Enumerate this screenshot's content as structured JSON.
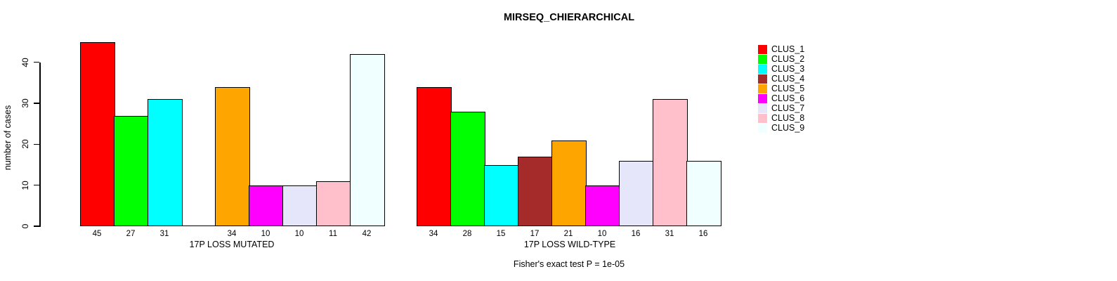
{
  "chart_data": {
    "type": "bar",
    "title": "MIRSEQ_CHIERARCHICAL",
    "ylabel": "number of cases",
    "xlabel": "",
    "ylim": [
      0,
      45
    ],
    "yticks": [
      0,
      10,
      20,
      30,
      40
    ],
    "grid": false,
    "legend_position": "right",
    "bar_border_color": "#000000",
    "clusters": [
      {
        "name": "CLUS_1",
        "color": "#FF0000"
      },
      {
        "name": "CLUS_2",
        "color": "#00FF00"
      },
      {
        "name": "CLUS_3",
        "color": "#00FFFF"
      },
      {
        "name": "CLUS_4",
        "color": "#A52A2A"
      },
      {
        "name": "CLUS_5",
        "color": "#FFA500"
      },
      {
        "name": "CLUS_6",
        "color": "#FF00FF"
      },
      {
        "name": "CLUS_7",
        "color": "#E6E6FA"
      },
      {
        "name": "CLUS_8",
        "color": "#FFC0CB"
      },
      {
        "name": "CLUS_9",
        "color": "#F0FFFF"
      }
    ],
    "groups": [
      {
        "label": "17P LOSS MUTATED",
        "values": [
          45,
          27,
          31,
          0,
          34,
          10,
          10,
          11,
          42
        ]
      },
      {
        "label": "17P LOSS WILD-TYPE",
        "values": [
          34,
          28,
          15,
          17,
          21,
          10,
          16,
          31,
          16
        ]
      }
    ],
    "annotation": "Fisher's exact test P = 1e-05"
  }
}
